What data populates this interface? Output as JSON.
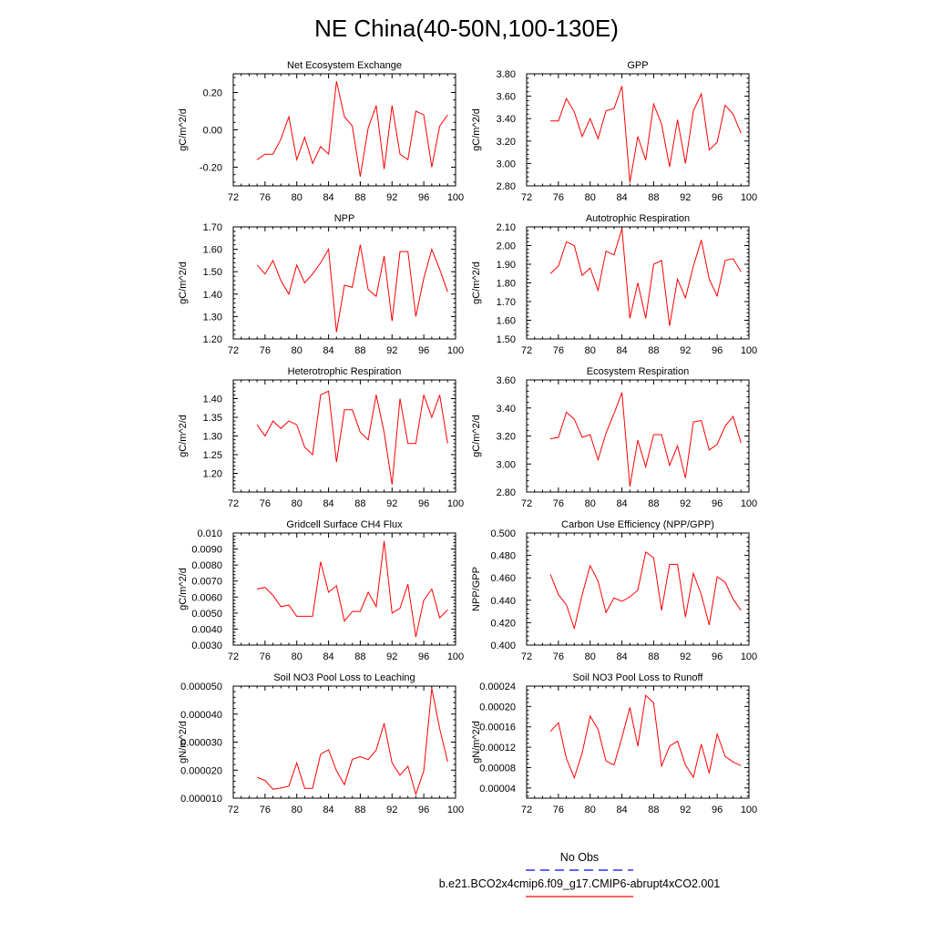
{
  "figure_title": "NE China(40-50N,100-130E)",
  "legend": {
    "entries": [
      {
        "label": "No Obs",
        "color": "#0000ff",
        "style": "dashed"
      },
      {
        "label": "b.e21.BCO2x4cmip6.f09_g17.CMIP6-abrupt4xCO2.001",
        "color": "#ff0000",
        "style": "solid"
      }
    ]
  },
  "chart_data": [
    {
      "type": "line",
      "title": "Net Ecosystem Exchange",
      "ylabel": "gC/m^2/d",
      "xlim": [
        72,
        100
      ],
      "xticks": [
        72,
        76,
        80,
        84,
        88,
        92,
        96,
        100
      ],
      "ylim": [
        -0.3,
        0.3
      ],
      "yticks": [
        -0.2,
        0.0,
        0.2
      ],
      "ytick_labels": [
        "-0.20",
        "0.00",
        "0.20"
      ],
      "x": [
        75,
        76,
        77,
        78,
        79,
        80,
        81,
        82,
        83,
        84,
        85,
        86,
        87,
        88,
        89,
        90,
        91,
        92,
        93,
        94,
        95,
        96,
        97,
        98,
        99
      ],
      "series": [
        {
          "name": "b.e21.BCO2x4cmip6.f09_g17.CMIP6-abrupt4xCO2.001",
          "color": "#ff0000",
          "values": [
            -0.16,
            -0.13,
            -0.13,
            -0.05,
            0.07,
            -0.16,
            -0.04,
            -0.18,
            -0.09,
            -0.13,
            0.26,
            0.07,
            0.02,
            -0.25,
            0.01,
            0.13,
            -0.21,
            0.13,
            -0.13,
            -0.16,
            0.1,
            0.08,
            -0.2,
            0.02,
            0.08
          ]
        }
      ]
    },
    {
      "type": "line",
      "title": "GPP",
      "ylabel": "gC/m^2/d",
      "xlim": [
        72,
        100
      ],
      "xticks": [
        72,
        76,
        80,
        84,
        88,
        92,
        96,
        100
      ],
      "ylim": [
        2.8,
        3.8
      ],
      "yticks": [
        2.8,
        3.0,
        3.2,
        3.4,
        3.6,
        3.8
      ],
      "ytick_labels": [
        "2.80",
        "3.00",
        "3.20",
        "3.40",
        "3.60",
        "3.80"
      ],
      "x": [
        75,
        76,
        77,
        78,
        79,
        80,
        81,
        82,
        83,
        84,
        85,
        86,
        87,
        88,
        89,
        90,
        91,
        92,
        93,
        94,
        95,
        96,
        97,
        98,
        99
      ],
      "series": [
        {
          "name": "b.e21.BCO2x4cmip6.f09_g17.CMIP6-abrupt4xCO2.001",
          "color": "#ff0000",
          "values": [
            3.38,
            3.38,
            3.58,
            3.46,
            3.24,
            3.4,
            3.22,
            3.47,
            3.49,
            3.69,
            2.83,
            3.24,
            3.03,
            3.53,
            3.35,
            2.97,
            3.39,
            3.0,
            3.47,
            3.62,
            3.12,
            3.19,
            3.52,
            3.44,
            3.27
          ]
        }
      ]
    },
    {
      "type": "line",
      "title": "NPP",
      "ylabel": "gC/m^2/d",
      "xlim": [
        72,
        100
      ],
      "xticks": [
        72,
        76,
        80,
        84,
        88,
        92,
        96,
        100
      ],
      "ylim": [
        1.2,
        1.7
      ],
      "yticks": [
        1.2,
        1.3,
        1.4,
        1.5,
        1.6,
        1.7
      ],
      "ytick_labels": [
        "1.20",
        "1.30",
        "1.40",
        "1.50",
        "1.60",
        "1.70"
      ],
      "x": [
        75,
        76,
        77,
        78,
        79,
        80,
        81,
        82,
        83,
        84,
        85,
        86,
        87,
        88,
        89,
        90,
        91,
        92,
        93,
        94,
        95,
        96,
        97,
        98,
        99
      ],
      "series": [
        {
          "name": "b.e21.BCO2x4cmip6.f09_g17.CMIP6-abrupt4xCO2.001",
          "color": "#ff0000",
          "values": [
            1.53,
            1.49,
            1.55,
            1.46,
            1.4,
            1.53,
            1.45,
            1.49,
            1.54,
            1.6,
            1.23,
            1.44,
            1.43,
            1.62,
            1.42,
            1.39,
            1.57,
            1.28,
            1.59,
            1.59,
            1.3,
            1.47,
            1.6,
            1.51,
            1.41
          ]
        }
      ]
    },
    {
      "type": "line",
      "title": "Autotrophic Respiration",
      "ylabel": "gC/m^2/d",
      "xlim": [
        72,
        100
      ],
      "xticks": [
        72,
        76,
        80,
        84,
        88,
        92,
        96,
        100
      ],
      "ylim": [
        1.5,
        2.1
      ],
      "yticks": [
        1.5,
        1.6,
        1.7,
        1.8,
        1.9,
        2.0,
        2.1
      ],
      "ytick_labels": [
        "1.50",
        "1.60",
        "1.70",
        "1.80",
        "1.90",
        "2.00",
        "2.10"
      ],
      "x": [
        75,
        76,
        77,
        78,
        79,
        80,
        81,
        82,
        83,
        84,
        85,
        86,
        87,
        88,
        89,
        90,
        91,
        92,
        93,
        94,
        95,
        96,
        97,
        98,
        99
      ],
      "series": [
        {
          "name": "b.e21.BCO2x4cmip6.f09_g17.CMIP6-abrupt4xCO2.001",
          "color": "#ff0000",
          "values": [
            1.85,
            1.89,
            2.02,
            2.0,
            1.84,
            1.88,
            1.76,
            1.97,
            1.95,
            2.09,
            1.61,
            1.8,
            1.61,
            1.9,
            1.92,
            1.57,
            1.82,
            1.72,
            1.89,
            2.03,
            1.82,
            1.73,
            1.92,
            1.93,
            1.86
          ]
        }
      ]
    },
    {
      "type": "line",
      "title": "Heterotrophic Respiration",
      "ylabel": "gC/m^2/d",
      "xlim": [
        72,
        100
      ],
      "xticks": [
        72,
        76,
        80,
        84,
        88,
        92,
        96,
        100
      ],
      "ylim": [
        1.15,
        1.45
      ],
      "yticks": [
        1.2,
        1.25,
        1.3,
        1.35,
        1.4
      ],
      "ytick_labels": [
        "1.20",
        "1.25",
        "1.30",
        "1.35",
        "1.40"
      ],
      "x": [
        75,
        76,
        77,
        78,
        79,
        80,
        81,
        82,
        83,
        84,
        85,
        86,
        87,
        88,
        89,
        90,
        91,
        92,
        93,
        94,
        95,
        96,
        97,
        98,
        99
      ],
      "series": [
        {
          "name": "b.e21.BCO2x4cmip6.f09_g17.CMIP6-abrupt4xCO2.001",
          "color": "#ff0000",
          "values": [
            1.33,
            1.3,
            1.34,
            1.32,
            1.34,
            1.33,
            1.27,
            1.25,
            1.41,
            1.42,
            1.23,
            1.37,
            1.37,
            1.31,
            1.29,
            1.41,
            1.31,
            1.17,
            1.4,
            1.28,
            1.28,
            1.41,
            1.35,
            1.41,
            1.28
          ]
        }
      ]
    },
    {
      "type": "line",
      "title": "Ecosystem Respiration",
      "ylabel": "gC/m^2/d",
      "xlim": [
        72,
        100
      ],
      "xticks": [
        72,
        76,
        80,
        84,
        88,
        92,
        96,
        100
      ],
      "ylim": [
        2.8,
        3.6
      ],
      "yticks": [
        2.8,
        3.0,
        3.2,
        3.4,
        3.6
      ],
      "ytick_labels": [
        "2.80",
        "3.00",
        "3.20",
        "3.40",
        "3.60"
      ],
      "x": [
        75,
        76,
        77,
        78,
        79,
        80,
        81,
        82,
        83,
        84,
        85,
        86,
        87,
        88,
        89,
        90,
        91,
        92,
        93,
        94,
        95,
        96,
        97,
        98,
        99
      ],
      "series": [
        {
          "name": "b.e21.BCO2x4cmip6.f09_g17.CMIP6-abrupt4xCO2.001",
          "color": "#ff0000",
          "values": [
            3.18,
            3.19,
            3.37,
            3.32,
            3.19,
            3.21,
            3.03,
            3.22,
            3.36,
            3.51,
            2.84,
            3.17,
            2.98,
            3.21,
            3.21,
            2.99,
            3.13,
            2.9,
            3.3,
            3.31,
            3.1,
            3.14,
            3.27,
            3.34,
            3.15
          ]
        }
      ]
    },
    {
      "type": "line",
      "title": "Gridcell Surface CH4 Flux",
      "ylabel": "gC/m^2/d",
      "xlim": [
        72,
        100
      ],
      "xticks": [
        72,
        76,
        80,
        84,
        88,
        92,
        96,
        100
      ],
      "ylim": [
        0.003,
        0.01
      ],
      "yticks": [
        0.003,
        0.004,
        0.005,
        0.006,
        0.007,
        0.008,
        0.009,
        0.01
      ],
      "ytick_labels": [
        "0.0030",
        "0.0040",
        "0.0050",
        "0.0060",
        "0.0070",
        "0.0080",
        "0.0090",
        "0.010"
      ],
      "x": [
        75,
        76,
        77,
        78,
        79,
        80,
        81,
        82,
        83,
        84,
        85,
        86,
        87,
        88,
        89,
        90,
        91,
        92,
        93,
        94,
        95,
        96,
        97,
        98,
        99
      ],
      "series": [
        {
          "name": "b.e21.BCO2x4cmip6.f09_g17.CMIP6-abrupt4xCO2.001",
          "color": "#ff0000",
          "values": [
            0.0065,
            0.0066,
            0.0061,
            0.0054,
            0.0055,
            0.0048,
            0.0048,
            0.0048,
            0.0082,
            0.0063,
            0.0067,
            0.0045,
            0.0051,
            0.0051,
            0.0063,
            0.0054,
            0.0095,
            0.005,
            0.0053,
            0.0068,
            0.0035,
            0.0058,
            0.0065,
            0.0047,
            0.0052
          ]
        }
      ]
    },
    {
      "type": "line",
      "title": "Carbon Use Efficiency (NPP/GPP)",
      "ylabel": "NPP/GPP",
      "xlim": [
        72,
        100
      ],
      "xticks": [
        72,
        76,
        80,
        84,
        88,
        92,
        96,
        100
      ],
      "ylim": [
        0.4,
        0.5
      ],
      "yticks": [
        0.4,
        0.42,
        0.44,
        0.46,
        0.48,
        0.5
      ],
      "ytick_labels": [
        "0.400",
        "0.420",
        "0.440",
        "0.460",
        "0.480",
        "0.500"
      ],
      "x": [
        75,
        76,
        77,
        78,
        79,
        80,
        81,
        82,
        83,
        84,
        85,
        86,
        87,
        88,
        89,
        90,
        91,
        92,
        93,
        94,
        95,
        96,
        97,
        98,
        99
      ],
      "series": [
        {
          "name": "b.e21.BCO2x4cmip6.f09_g17.CMIP6-abrupt4xCO2.001",
          "color": "#ff0000",
          "values": [
            0.463,
            0.445,
            0.436,
            0.415,
            0.445,
            0.471,
            0.457,
            0.429,
            0.442,
            0.439,
            0.443,
            0.449,
            0.483,
            0.478,
            0.431,
            0.472,
            0.472,
            0.425,
            0.464,
            0.445,
            0.418,
            0.461,
            0.456,
            0.441,
            0.431
          ]
        }
      ]
    },
    {
      "type": "line",
      "title": "Soil NO3 Pool Loss to Leaching",
      "ylabel": "gN/m^2/d",
      "xlim": [
        72,
        100
      ],
      "xticks": [
        72,
        76,
        80,
        84,
        88,
        92,
        96,
        100
      ],
      "ylim": [
        1e-05,
        5e-05
      ],
      "yticks": [
        1e-05,
        2e-05,
        3e-05,
        4e-05,
        5e-05
      ],
      "ytick_labels": [
        "0.000010",
        "0.000020",
        "0.000030",
        "0.000040",
        "0.000050"
      ],
      "x": [
        75,
        76,
        77,
        78,
        79,
        80,
        81,
        82,
        83,
        84,
        85,
        86,
        87,
        88,
        89,
        90,
        91,
        92,
        93,
        94,
        95,
        96,
        97,
        98,
        99
      ],
      "series": [
        {
          "name": "b.e21.BCO2x4cmip6.f09_g17.CMIP6-abrupt4xCO2.001",
          "color": "#ff0000",
          "values": [
            1.74e-05,
            1.63e-05,
            1.32e-05,
            1.36e-05,
            1.43e-05,
            2.26e-05,
            1.35e-05,
            1.35e-05,
            2.57e-05,
            2.73e-05,
            1.98e-05,
            1.48e-05,
            2.39e-05,
            2.48e-05,
            2.38e-05,
            2.72e-05,
            3.67e-05,
            2.26e-05,
            1.82e-05,
            2.14e-05,
            1.14e-05,
            1.97e-05,
            4.92e-05,
            3.48e-05,
            2.3e-05
          ]
        }
      ]
    },
    {
      "type": "line",
      "title": "Soil NO3 Pool Loss to Runoff",
      "ylabel": "gN/m^2/d",
      "xlim": [
        72,
        100
      ],
      "xticks": [
        72,
        76,
        80,
        84,
        88,
        92,
        96,
        100
      ],
      "ylim": [
        2e-05,
        0.00024
      ],
      "yticks": [
        4e-05,
        8e-05,
        0.00012,
        0.00016,
        0.0002,
        0.00024
      ],
      "ytick_labels": [
        "0.00004",
        "0.00008",
        "0.00012",
        "0.00016",
        "0.00020",
        "0.00024"
      ],
      "x": [
        75,
        76,
        77,
        78,
        79,
        80,
        81,
        82,
        83,
        84,
        85,
        86,
        87,
        88,
        89,
        90,
        91,
        92,
        93,
        94,
        95,
        96,
        97,
        98,
        99
      ],
      "series": [
        {
          "name": "b.e21.BCO2x4cmip6.f09_g17.CMIP6-abrupt4xCO2.001",
          "color": "#ff0000",
          "values": [
            0.000151,
            0.000168,
            9.8e-05,
            6e-05,
            0.000109,
            0.000181,
            0.000155,
            9.3e-05,
            8.5e-05,
            0.000139,
            0.000198,
            0.000122,
            0.000222,
            0.000207,
            8.3e-05,
            0.000122,
            0.000132,
            8.5e-05,
            6.1e-05,
            0.000126,
            6.9e-05,
            0.000146,
            0.000102,
            9.1e-05,
            8.4e-05
          ]
        }
      ]
    }
  ]
}
